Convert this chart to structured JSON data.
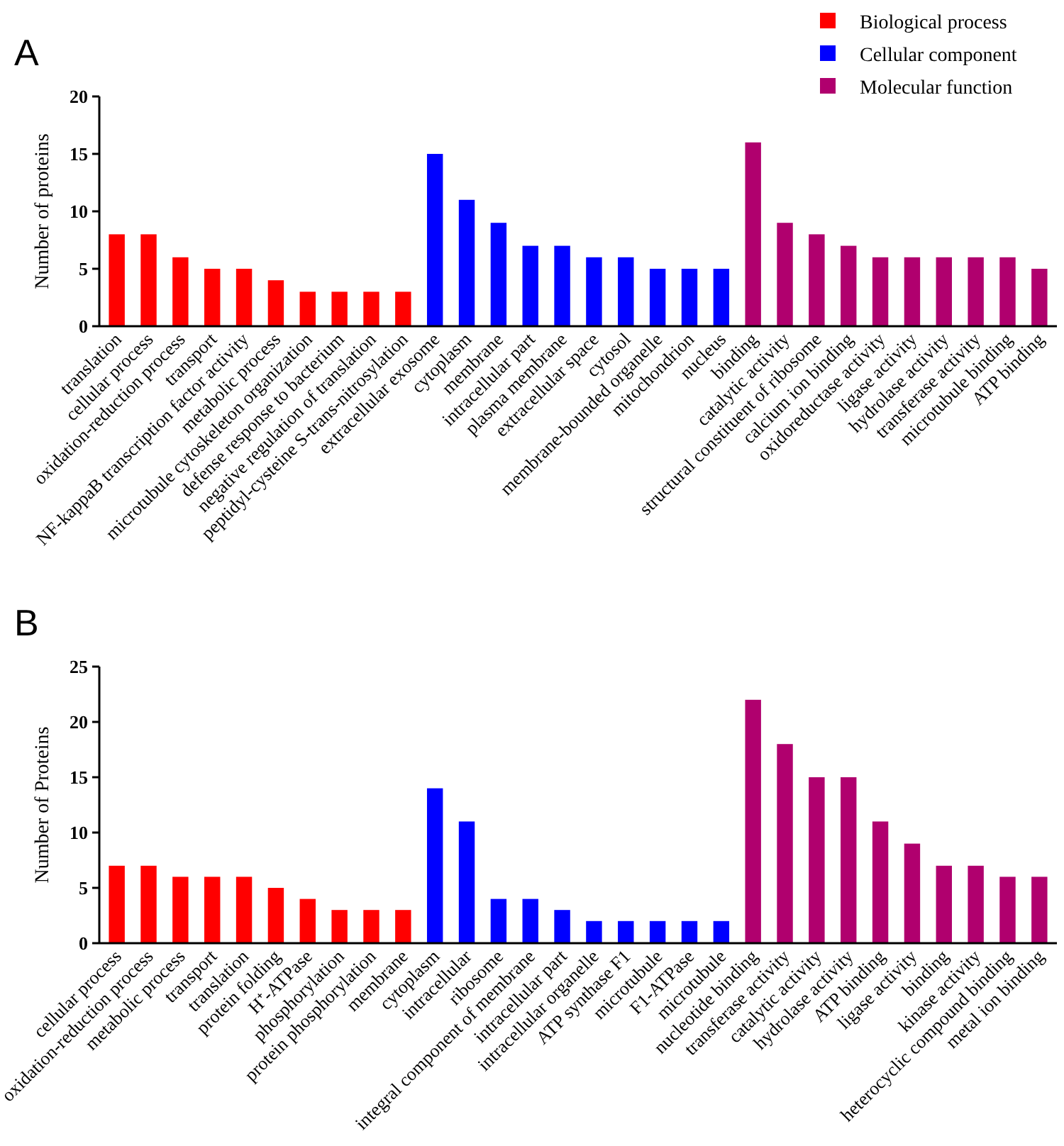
{
  "chart_data": [
    {
      "type": "bar",
      "title": "A",
      "ylabel": "Number of proteins",
      "categories": [
        "translation",
        "cellular process",
        "oxidation-reduction process",
        "transport",
        "NF-kappaB transcription factor activity",
        "metabolic process",
        "microtubule cytoskeleton organization",
        "defense response to bacterium",
        "negative regulation of translation",
        "peptidyl-cysteine S-trans-nitrosylation",
        "extracellular exosome",
        "cytoplasm",
        "membrane",
        "intracellular part",
        "plasma membrane",
        "extracellular space",
        "cytosol",
        "membrane-bounded organelle",
        "mitochondrion",
        "nucleus",
        "binding",
        "catalytic activity",
        "structural constituent of ribosome",
        "calcium ion binding",
        "oxidoreductase activity",
        "ligase activity",
        "hydrolase activity",
        "transferase activity",
        "microtubule binding",
        "ATP binding"
      ],
      "series": [
        {
          "name": "Biological process",
          "color": "#ff0000",
          "values": [
            8,
            8,
            6,
            5,
            5,
            4,
            3,
            3,
            3,
            3,
            null,
            null,
            null,
            null,
            null,
            null,
            null,
            null,
            null,
            null,
            null,
            null,
            null,
            null,
            null,
            null,
            null,
            null,
            null,
            null
          ]
        },
        {
          "name": "Cellular component",
          "color": "#0000ff",
          "values": [
            null,
            null,
            null,
            null,
            null,
            null,
            null,
            null,
            null,
            null,
            15,
            11,
            9,
            7,
            7,
            6,
            6,
            5,
            5,
            5,
            null,
            null,
            null,
            null,
            null,
            null,
            null,
            null,
            null,
            null
          ]
        },
        {
          "name": "Molecular function",
          "color": "#b0006e",
          "values": [
            null,
            null,
            null,
            null,
            null,
            null,
            null,
            null,
            null,
            null,
            null,
            null,
            null,
            null,
            null,
            null,
            null,
            null,
            null,
            null,
            16,
            9,
            8,
            7,
            6,
            6,
            6,
            6,
            6,
            5
          ]
        }
      ],
      "ylim": [
        0,
        20
      ],
      "yticks": [
        0,
        5,
        10,
        15,
        20
      ],
      "grid": false,
      "legend": "top right"
    },
    {
      "type": "bar",
      "title": "B",
      "ylabel": "Number of Proteins",
      "categories": [
        "cellular process",
        "oxidation-reduction process",
        "metabolic process",
        "transport",
        "translation",
        "protein folding",
        "H⁺-ATPase",
        "phosphorylation",
        "protein phosphorylation",
        "membrane",
        "cytoplasm",
        "intracellular",
        "ribosome",
        "integral component of membrane",
        "intracellular part",
        "intracellular organelle",
        "ATP synthase F1",
        "microtubule",
        "F1-ATPase",
        "microtubule",
        "nucleotide binding",
        "transferase activity",
        "catalytic activity",
        "hydrolase activity",
        "ATP binding",
        "ligase activity",
        "binding",
        "kinase activity",
        "heterocyclic compound binding",
        "metal ion binding"
      ],
      "series": [
        {
          "color": "#ff0000",
          "values": [
            7,
            7,
            6,
            6,
            6,
            5,
            4,
            3,
            3,
            3,
            null,
            null,
            null,
            null,
            null,
            null,
            null,
            null,
            null,
            null,
            null,
            null,
            null,
            null,
            null,
            null,
            null,
            null,
            null,
            null
          ]
        },
        {
          "color": "#0000ff",
          "values": [
            null,
            null,
            null,
            null,
            null,
            null,
            null,
            null,
            null,
            null,
            14,
            11,
            4,
            4,
            3,
            2,
            2,
            2,
            2,
            2,
            null,
            null,
            null,
            null,
            null,
            null,
            null,
            null,
            null,
            null
          ]
        },
        {
          "color": "#b0006e",
          "values": [
            null,
            null,
            null,
            null,
            null,
            null,
            null,
            null,
            null,
            null,
            null,
            null,
            null,
            null,
            null,
            null,
            null,
            null,
            null,
            null,
            22,
            18,
            15,
            15,
            11,
            9,
            7,
            7,
            6,
            6
          ]
        }
      ],
      "ylim": [
        0,
        25
      ],
      "yticks": [
        0,
        5,
        10,
        15,
        20,
        25
      ],
      "grid": false,
      "legend": false
    }
  ]
}
